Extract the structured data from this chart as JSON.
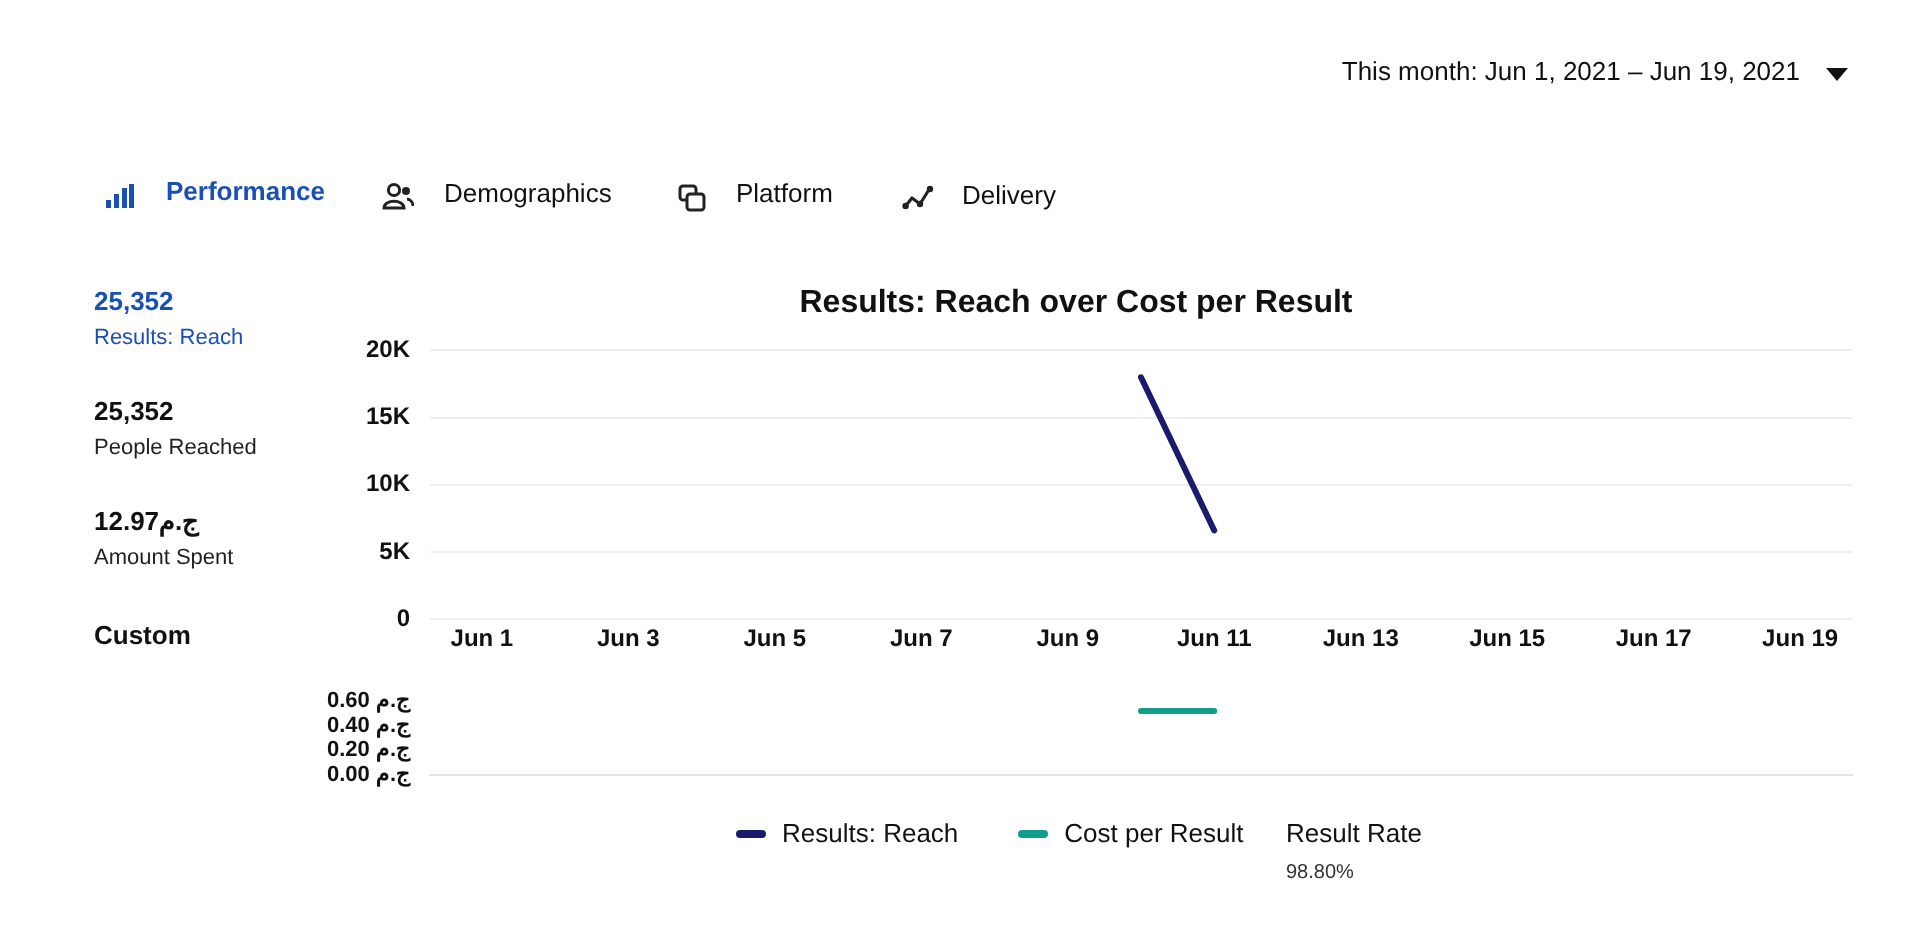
{
  "chart_data": [
    {
      "type": "line",
      "title": "Results: Reach over Cost per Result",
      "annotations": [
        "This month: Jun 1, 2021 – Jun 19, 2021",
        "Performance",
        "Demographics",
        "Platform",
        "Delivery",
        "25,352",
        "Results: Reach",
        "25,352",
        "People Reached",
        "12.97ج.م",
        "Amount Spent",
        "Custom"
      ],
      "series": [
        {
          "name": "Results: Reach",
          "color": "#1c1a6b",
          "x": [
            "2021-06-10",
            "2021-06-11"
          ],
          "values": [
            18000,
            6600
          ]
        }
      ],
      "xlim": [
        "2021-05-31T07:00",
        "2021-06-19T17:00"
      ],
      "xticks": [
        {
          "value": "2021-06-01",
          "label": "Jun 1"
        },
        {
          "value": "2021-06-03",
          "label": "Jun 3"
        },
        {
          "value": "2021-06-05",
          "label": "Jun 5"
        },
        {
          "value": "2021-06-07",
          "label": "Jun 7"
        },
        {
          "value": "2021-06-09",
          "label": "Jun 9"
        },
        {
          "value": "2021-06-11",
          "label": "Jun 11"
        },
        {
          "value": "2021-06-13",
          "label": "Jun 13"
        },
        {
          "value": "2021-06-15",
          "label": "Jun 15"
        },
        {
          "value": "2021-06-17",
          "label": "Jun 17"
        },
        {
          "value": "2021-06-19",
          "label": "Jun 19"
        }
      ],
      "ylim": [
        0,
        20000
      ],
      "yticks": [
        0,
        {
          "value": 5000,
          "label": "5K"
        },
        {
          "value": 10000,
          "label": "10K"
        },
        {
          "value": 15000,
          "label": "15K"
        },
        {
          "value": 20000,
          "label": "20K"
        }
      ],
      "grid": "y",
      "legend": "bottom"
    },
    {
      "type": "line",
      "annotations": [
        "Result Rate",
        "98.80%"
      ],
      "series": [
        {
          "name": "Cost per Result",
          "color": "#119e8c",
          "x": [
            "2021-06-10",
            "2021-06-11"
          ],
          "values": [
            0.52,
            0.52
          ]
        }
      ],
      "xlim": [
        "2021-05-31T07:00",
        "2021-06-19T17:00"
      ],
      "ylim": [
        0,
        0.6
      ],
      "yticks": [
        {
          "value": 0,
          "label": "0.00 ج.م"
        },
        {
          "value": 0.2,
          "label": "0.20 ج.م"
        },
        {
          "value": 0.4,
          "label": "0.40 ج.م"
        },
        {
          "value": 0.6,
          "label": "0.60 ج.م"
        }
      ],
      "tick_labels": "y",
      "legend": "bottom"
    }
  ]
}
